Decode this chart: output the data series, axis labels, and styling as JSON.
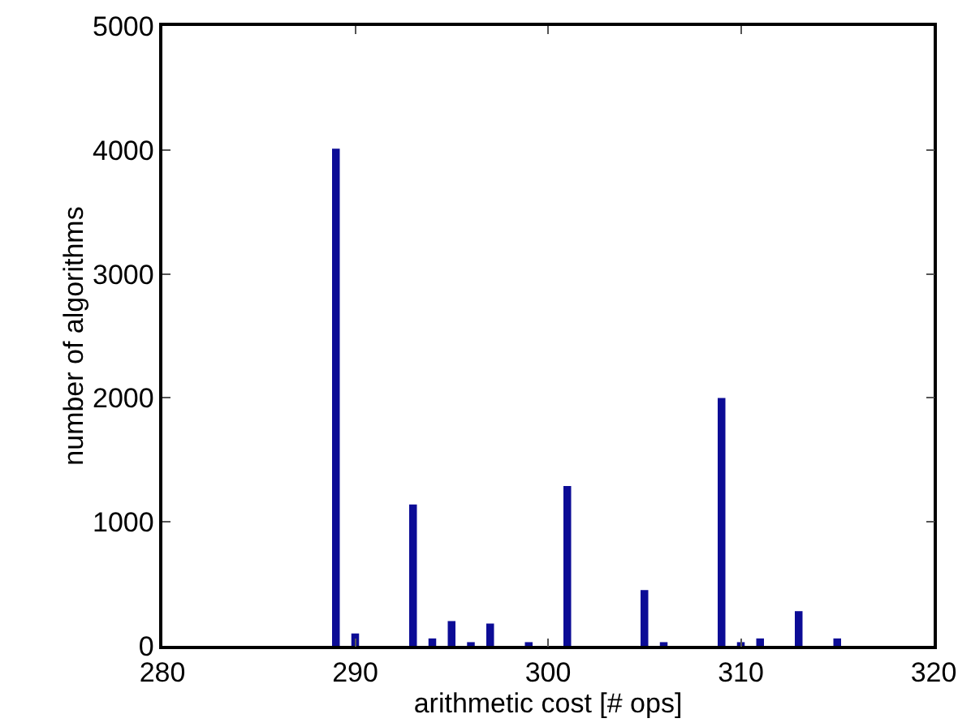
{
  "chart_data": {
    "type": "bar",
    "xlabel": "arithmetic cost [# ops]",
    "ylabel": "number of algorithms",
    "x": [
      289,
      290,
      293,
      294,
      295,
      296,
      297,
      299,
      301,
      305,
      306,
      309,
      310,
      311,
      313,
      315
    ],
    "values": [
      4010,
      100,
      1140,
      60,
      200,
      30,
      180,
      30,
      1290,
      450,
      30,
      2000,
      30,
      60,
      280,
      60
    ],
    "color": "#0c0c96",
    "xlim": [
      280,
      320
    ],
    "xticks": [
      280,
      290,
      300,
      310,
      320
    ],
    "ylim": [
      0,
      5000
    ],
    "yticks": [
      0,
      1000,
      2000,
      3000,
      4000,
      5000
    ],
    "grid": false
  }
}
